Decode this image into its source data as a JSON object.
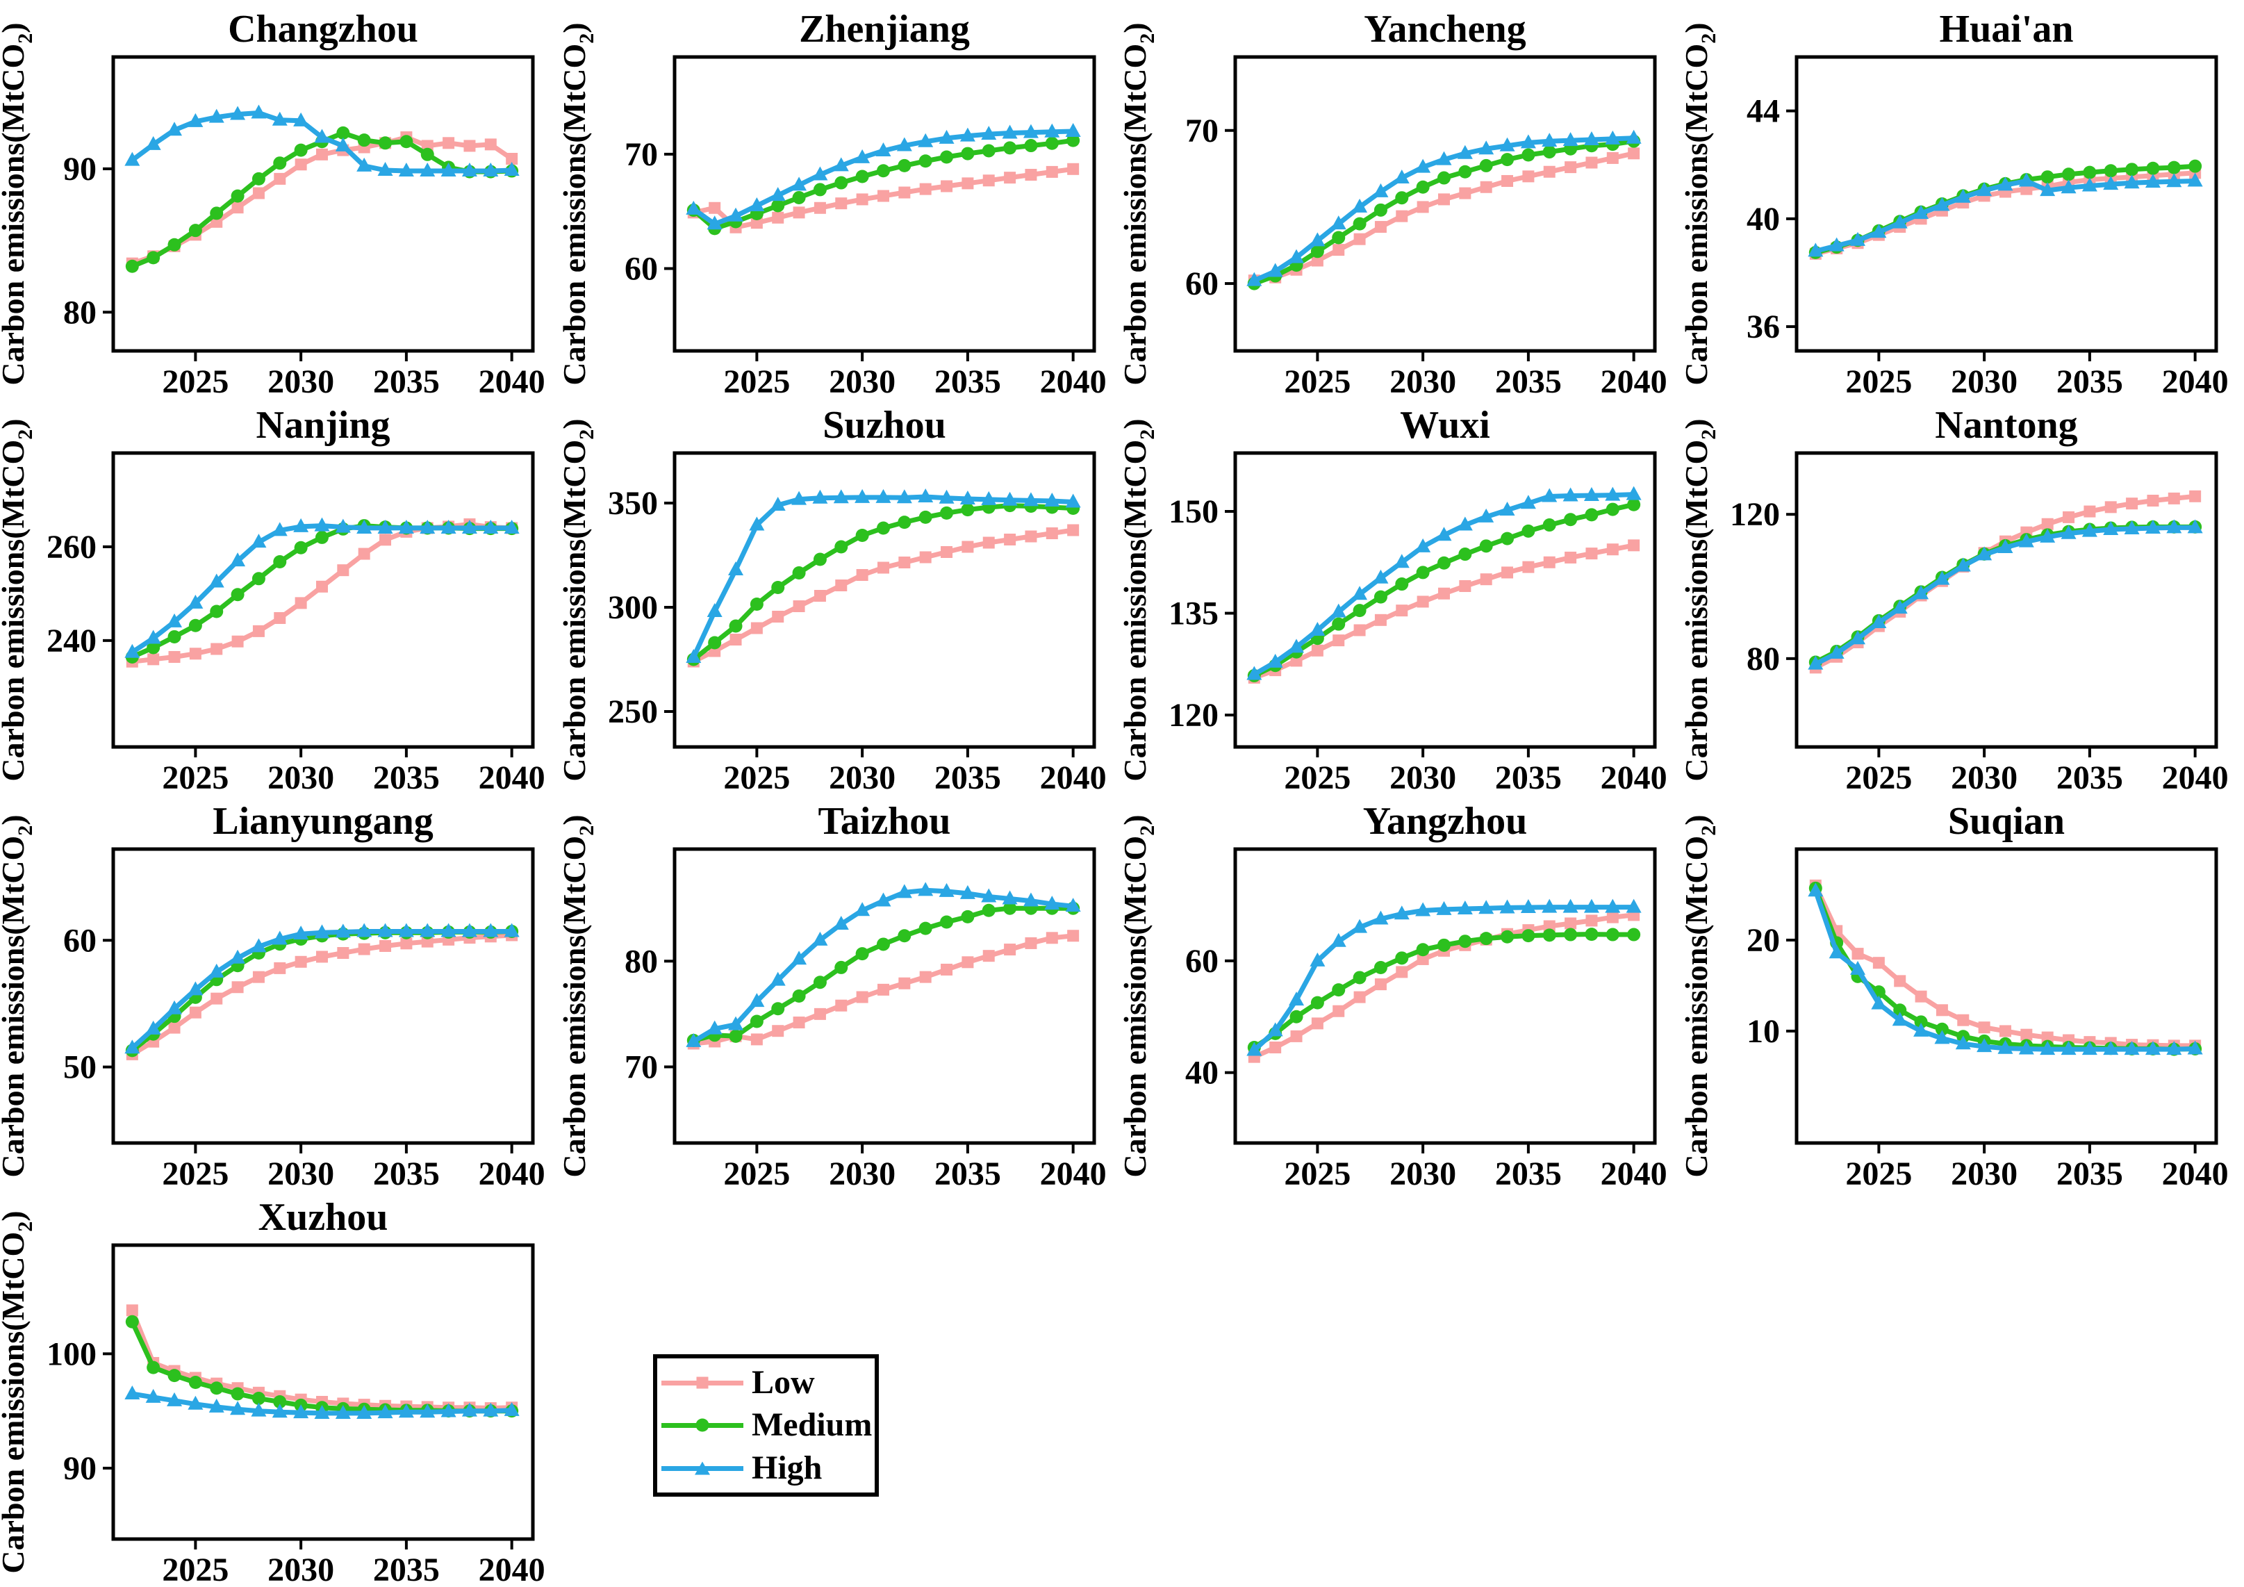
{
  "figure": {
    "ylabel_prefix": "Carbon emissions(MtCO",
    "ylabel_sub": "2",
    "ylabel_suffix": ")"
  },
  "legend": {
    "items": [
      {
        "label": "Low",
        "color": "#F9A2A2",
        "marker": "square"
      },
      {
        "label": "Medium",
        "color": "#2CC01E",
        "marker": "circle"
      },
      {
        "label": "High",
        "color": "#2AA6E4",
        "marker": "triangle"
      }
    ]
  },
  "chart_data": {
    "type": "line",
    "x_label": "",
    "years": [
      2022,
      2023,
      2024,
      2025,
      2026,
      2027,
      2028,
      2029,
      2030,
      2031,
      2032,
      2033,
      2034,
      2035,
      2036,
      2037,
      2038,
      2039,
      2040
    ],
    "xticks": [
      2025,
      2030,
      2035,
      2040
    ],
    "xlim": [
      2021.1,
      2041.0
    ],
    "series_names": [
      "Low",
      "Medium",
      "High"
    ],
    "charts": [
      {
        "title": "Changzhou",
        "ylim": [
          77.3,
          97.8
        ],
        "yticks": [
          80,
          90
        ],
        "low": [
          83.4,
          83.9,
          84.6,
          85.4,
          86.3,
          87.3,
          88.3,
          89.3,
          90.3,
          91.0,
          91.3,
          91.5,
          91.8,
          92.2,
          91.6,
          91.8,
          91.6,
          91.7,
          90.7
        ],
        "medium": [
          83.2,
          83.8,
          84.7,
          85.7,
          86.9,
          88.1,
          89.3,
          90.4,
          91.3,
          91.9,
          92.5,
          92.0,
          91.8,
          91.9,
          91.0,
          90.1,
          89.8,
          89.8,
          89.85
        ],
        "high": [
          90.6,
          91.7,
          92.7,
          93.3,
          93.6,
          93.8,
          93.9,
          93.4,
          93.35,
          92.2,
          91.6,
          90.2,
          89.9,
          89.85,
          89.85,
          89.85,
          89.85,
          89.85,
          89.9
        ]
      },
      {
        "title": "Zhenjiang",
        "ylim": [
          52.8,
          78.5
        ],
        "yticks": [
          60,
          70
        ],
        "low": [
          64.9,
          65.3,
          63.6,
          64.0,
          64.45,
          64.9,
          65.3,
          65.7,
          66.05,
          66.35,
          66.65,
          66.95,
          67.2,
          67.45,
          67.7,
          67.95,
          68.2,
          68.45,
          68.7
        ],
        "medium": [
          65.1,
          63.5,
          64.1,
          64.8,
          65.5,
          66.2,
          66.9,
          67.5,
          68.05,
          68.55,
          69.0,
          69.4,
          69.75,
          70.05,
          70.3,
          70.55,
          70.75,
          70.95,
          71.2
        ],
        "high": [
          65.2,
          63.9,
          64.6,
          65.5,
          66.4,
          67.3,
          68.2,
          69.0,
          69.7,
          70.3,
          70.75,
          71.1,
          71.4,
          71.6,
          71.75,
          71.85,
          71.9,
          71.95,
          72.0
        ]
      },
      {
        "title": "Yancheng",
        "ylim": [
          55.6,
          74.8
        ],
        "yticks": [
          60,
          70
        ],
        "low": [
          60.2,
          60.4,
          60.9,
          61.5,
          62.2,
          62.9,
          63.7,
          64.4,
          65.0,
          65.5,
          65.9,
          66.3,
          66.7,
          67.0,
          67.3,
          67.6,
          67.9,
          68.2,
          68.5
        ],
        "medium": [
          60.0,
          60.5,
          61.2,
          62.1,
          63.0,
          63.9,
          64.8,
          65.6,
          66.3,
          66.9,
          67.3,
          67.7,
          68.1,
          68.4,
          68.6,
          68.8,
          69.0,
          69.1,
          69.3
        ],
        "high": [
          60.2,
          60.8,
          61.7,
          62.8,
          63.9,
          65.0,
          66.0,
          66.9,
          67.6,
          68.1,
          68.5,
          68.8,
          69.0,
          69.2,
          69.3,
          69.35,
          69.4,
          69.45,
          69.5
        ]
      },
      {
        "title": "Huai'an",
        "ylim": [
          35.1,
          46.0
        ],
        "yticks": [
          36,
          40,
          44
        ],
        "low": [
          38.7,
          38.9,
          39.1,
          39.4,
          39.7,
          40.0,
          40.3,
          40.6,
          40.85,
          41.0,
          41.1,
          41.2,
          41.35,
          41.45,
          41.5,
          41.55,
          41.6,
          41.65,
          41.7
        ],
        "medium": [
          38.75,
          38.95,
          39.2,
          39.55,
          39.9,
          40.25,
          40.55,
          40.85,
          41.1,
          41.3,
          41.45,
          41.55,
          41.65,
          41.72,
          41.78,
          41.83,
          41.87,
          41.9,
          41.95
        ],
        "high": [
          38.8,
          39.0,
          39.2,
          39.5,
          39.85,
          40.2,
          40.5,
          40.8,
          41.05,
          41.25,
          41.4,
          41.05,
          41.15,
          41.22,
          41.28,
          41.33,
          41.36,
          41.38,
          41.4
        ]
      },
      {
        "title": "Nanjing",
        "ylim": [
          217.3,
          280.0
        ],
        "yticks": [
          240,
          260
        ],
        "low": [
          235.5,
          236.0,
          236.5,
          237.2,
          238.2,
          239.8,
          242.0,
          244.8,
          248.0,
          251.5,
          255.0,
          258.5,
          261.5,
          263.2,
          264.0,
          264.3,
          264.8,
          264.2,
          264.0
        ],
        "medium": [
          236.5,
          238.5,
          240.8,
          243.2,
          246.2,
          249.8,
          253.2,
          256.8,
          259.8,
          262.0,
          263.8,
          264.5,
          264.2,
          264.0,
          264.0,
          264.0,
          263.9,
          263.9,
          263.9
        ],
        "high": [
          237.5,
          240.5,
          244.0,
          248.0,
          252.5,
          257.0,
          261.0,
          263.5,
          264.3,
          264.5,
          264.2,
          264.0,
          264.0,
          264.0,
          264.0,
          264.0,
          264.0,
          264.0,
          264.0
        ]
      },
      {
        "title": "Suzhou",
        "ylim": [
          233,
          374
        ],
        "yticks": [
          250,
          300,
          350
        ],
        "low": [
          274,
          279,
          284.5,
          290,
          295.5,
          300.5,
          305.5,
          310.5,
          315.5,
          319,
          321.5,
          324,
          326.5,
          329,
          331,
          332.5,
          334,
          335.5,
          337
        ],
        "medium": [
          275,
          283,
          291,
          301.5,
          309.5,
          316.5,
          323,
          329,
          334.5,
          338,
          340.8,
          343.2,
          345.2,
          346.8,
          348,
          348.8,
          348.5,
          348,
          347.5
        ],
        "high": [
          276,
          298,
          318,
          339.5,
          349,
          351.8,
          352.4,
          352.6,
          352.7,
          352.7,
          352.6,
          353,
          352.4,
          352,
          351.7,
          351.4,
          351.2,
          351,
          350.5
        ]
      },
      {
        "title": "Wuxi",
        "ylim": [
          115.3,
          158.6
        ],
        "yticks": [
          120,
          135,
          150
        ],
        "low": [
          125.5,
          126.6,
          128,
          129.5,
          131,
          132.5,
          134,
          135.4,
          136.7,
          137.9,
          139,
          140,
          141,
          141.8,
          142.5,
          143.2,
          143.8,
          144.4,
          145
        ],
        "medium": [
          125.8,
          127.3,
          129.3,
          131.3,
          133.4,
          135.4,
          137.4,
          139.3,
          141,
          142.4,
          143.7,
          144.9,
          146,
          147.1,
          148,
          148.8,
          149.5,
          150.3,
          151
        ],
        "high": [
          126,
          127.8,
          130,
          132.5,
          135.2,
          137.8,
          140.2,
          142.5,
          144.8,
          146.5,
          148,
          149.2,
          150.2,
          151.2,
          152.2,
          152.3,
          152.35,
          152.4,
          152.5
        ]
      },
      {
        "title": "Nantong",
        "ylim": [
          55.5,
          137.0
        ],
        "yticks": [
          80,
          120
        ],
        "low": [
          77.5,
          80.5,
          84.5,
          89,
          93,
          97.5,
          101.5,
          105.5,
          109.3,
          112.5,
          115,
          117.3,
          119.2,
          120.8,
          122,
          123,
          123.8,
          124.4,
          125
        ],
        "medium": [
          79,
          82,
          86,
          90.5,
          94.5,
          98.5,
          102.5,
          106,
          109,
          111.3,
          113,
          114.3,
          115.2,
          115.8,
          116.2,
          116.4,
          116.5,
          116.5,
          116.5
        ],
        "high": [
          78.5,
          81.5,
          85.5,
          90,
          94,
          98,
          102,
          105.7,
          108.8,
          110.8,
          112.4,
          113.7,
          114.7,
          115.3,
          115.8,
          116.0,
          116.2,
          116.3,
          116.3
        ]
      },
      {
        "title": "Lianyungang",
        "ylim": [
          44.0,
          67.2
        ],
        "yticks": [
          50,
          60
        ],
        "low": [
          51,
          52,
          53.1,
          54.3,
          55.4,
          56.3,
          57.1,
          57.8,
          58.3,
          58.7,
          59.0,
          59.3,
          59.55,
          59.75,
          59.9,
          60.05,
          60.2,
          60.3,
          60.4
        ],
        "medium": [
          51.3,
          52.6,
          54,
          55.5,
          56.9,
          58,
          59,
          59.7,
          60.1,
          60.35,
          60.5,
          60.55,
          60.6,
          60.6,
          60.6,
          60.65,
          60.65,
          60.65,
          60.7
        ],
        "high": [
          51.5,
          53,
          54.6,
          56.1,
          57.5,
          58.6,
          59.5,
          60.1,
          60.5,
          60.6,
          60.65,
          60.7,
          60.7,
          60.7,
          60.7,
          60.7,
          60.7,
          60.7,
          60.7
        ]
      },
      {
        "title": "Taizhou",
        "ylim": [
          62.8,
          90.6
        ],
        "yticks": [
          70,
          80
        ],
        "low": [
          72.2,
          72.4,
          72.9,
          72.6,
          73.4,
          74.2,
          75,
          75.8,
          76.6,
          77.3,
          77.9,
          78.5,
          79.2,
          79.9,
          80.5,
          81.1,
          81.7,
          82.2,
          82.4
        ],
        "medium": [
          72.5,
          73.0,
          72.9,
          74.3,
          75.5,
          76.7,
          78,
          79.4,
          80.7,
          81.6,
          82.4,
          83.1,
          83.7,
          84.2,
          84.8,
          85.0,
          85.0,
          85.0,
          85.0
        ],
        "high": [
          72.4,
          73.6,
          74.0,
          76.2,
          78.2,
          80.2,
          82,
          83.5,
          84.8,
          85.7,
          86.5,
          86.7,
          86.6,
          86.4,
          86.1,
          85.9,
          85.7,
          85.4,
          85.2
        ]
      },
      {
        "title": "Yangzhou",
        "ylim": [
          27.4,
          80.0
        ],
        "yticks": [
          40,
          60
        ],
        "low": [
          42.8,
          44.5,
          46.5,
          48.8,
          51,
          53.5,
          55.8,
          58,
          60.3,
          61.8,
          62.8,
          63.8,
          64.8,
          65.5,
          66.2,
          66.7,
          67.2,
          67.8,
          68.2
        ],
        "medium": [
          44.5,
          47,
          50,
          52.5,
          54.8,
          57,
          58.8,
          60.5,
          62,
          62.8,
          63.5,
          64,
          64.3,
          64.5,
          64.6,
          64.7,
          64.75,
          64.7,
          64.7
        ],
        "high": [
          44,
          47.5,
          53,
          60,
          63.5,
          66,
          67.5,
          68.4,
          69,
          69.2,
          69.3,
          69.4,
          69.5,
          69.55,
          69.6,
          69.6,
          69.6,
          69.6,
          69.6
        ]
      },
      {
        "title": "Suqian",
        "ylim": [
          -2.3,
          30.0
        ],
        "yticks": [
          10,
          20
        ],
        "low": [
          26,
          21,
          18.5,
          17.5,
          15.5,
          13.8,
          12.3,
          11.2,
          10.4,
          10,
          9.6,
          9.3,
          9,
          8.8,
          8.7,
          8.5,
          8.45,
          8.4,
          8.4
        ],
        "medium": [
          25.7,
          19.7,
          16,
          14.3,
          12.3,
          11,
          10.2,
          9.4,
          8.9,
          8.6,
          8.4,
          8.3,
          8.2,
          8.15,
          8.1,
          8.05,
          8.05,
          8.0,
          8.05
        ],
        "high": [
          25.4,
          18.6,
          16.8,
          13,
          11.2,
          10,
          9.2,
          8.6,
          8.3,
          8.1,
          8.05,
          8.0,
          8.0,
          8.0,
          8.0,
          8.0,
          8.0,
          8.0,
          8.05
        ]
      },
      {
        "title": "Xuzhou",
        "ylim": [
          83.8,
          109.5
        ],
        "yticks": [
          90,
          100
        ],
        "low": [
          103.8,
          99.2,
          98.5,
          97.9,
          97.4,
          97.0,
          96.6,
          96.3,
          96.0,
          95.8,
          95.65,
          95.55,
          95.45,
          95.4,
          95.35,
          95.3,
          95.3,
          95.25,
          95.3
        ],
        "medium": [
          102.8,
          98.8,
          98.1,
          97.5,
          97.0,
          96.5,
          96.1,
          95.8,
          95.5,
          95.3,
          95.2,
          95.15,
          95.1,
          95.05,
          95.05,
          95.0,
          95.0,
          95.0,
          95.0
        ],
        "high": [
          96.5,
          96.2,
          95.9,
          95.6,
          95.35,
          95.15,
          95.0,
          94.9,
          94.85,
          94.8,
          94.8,
          94.8,
          94.85,
          94.9,
          94.9,
          94.95,
          95.0,
          95.0,
          95.05
        ]
      }
    ]
  }
}
